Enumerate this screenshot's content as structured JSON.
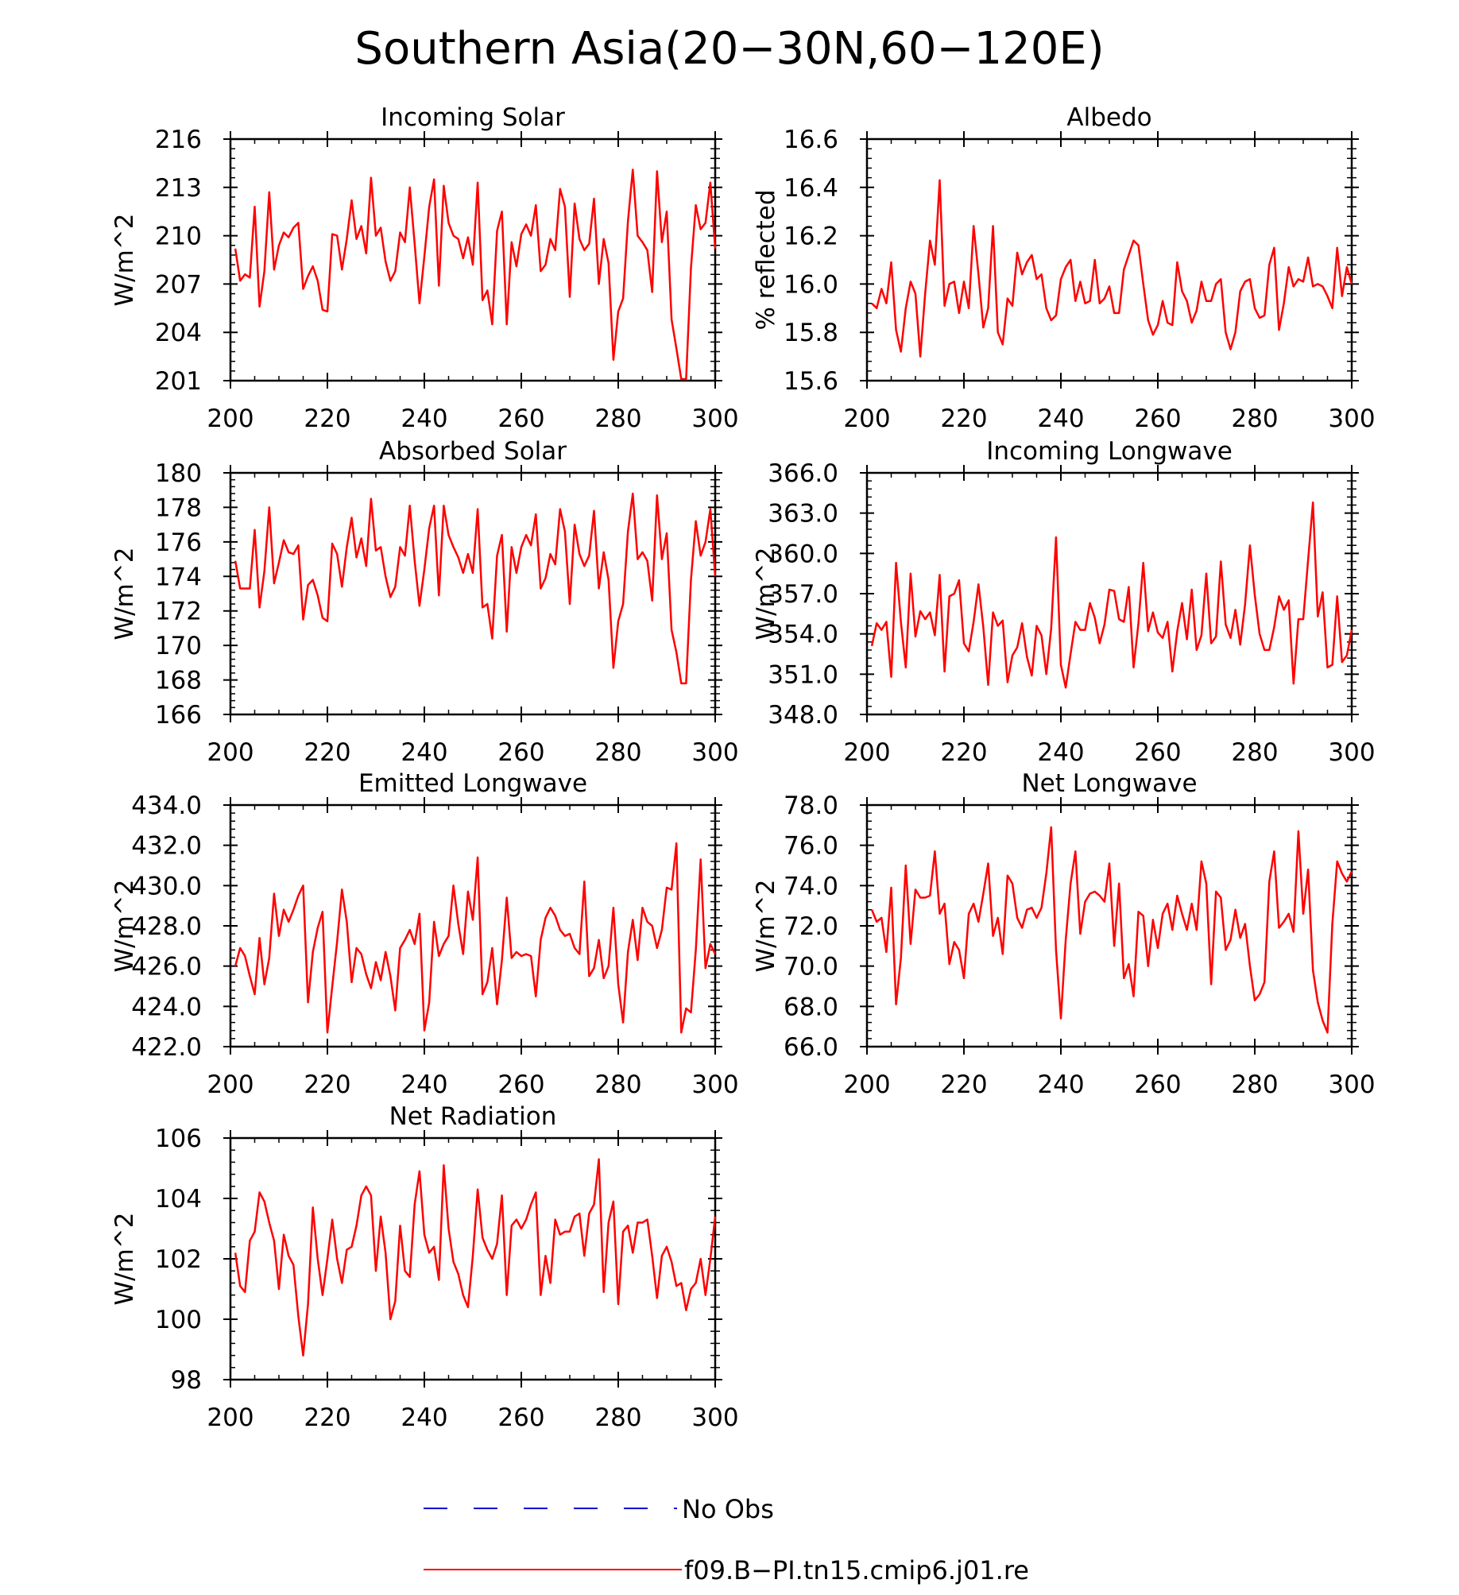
{
  "title": "Southern Asia(20−30N,60−120E)",
  "colors": {
    "model": "#ff0000",
    "obs": "#0000cc",
    "frame": "#000000"
  },
  "legend": {
    "obs_label": "No Obs",
    "model_label": "f09.B−PI.tn15.cmip6.j01.re"
  },
  "chart_data": [
    {
      "type": "line",
      "title": "Incoming Solar",
      "ylabel": "W/m^2",
      "xlim": [
        200,
        300
      ],
      "ylim": [
        201,
        216
      ],
      "xticks": [
        200,
        220,
        240,
        260,
        280,
        300
      ],
      "xtick_labels": [
        "200",
        "220",
        "240",
        "260",
        "280",
        "300"
      ],
      "yticks": [
        201,
        204,
        207,
        210,
        213,
        216
      ],
      "ytick_labels": [
        "201",
        "204",
        "207",
        "210",
        "213",
        "216"
      ],
      "x_start": 201,
      "series": [
        {
          "name": "f09.B−PI.tn15.cmip6.j01.re",
          "values": [
            209.2,
            207.2,
            207.6,
            207.4,
            211.8,
            205.6,
            207.8,
            212.7,
            207.9,
            209.4,
            210.2,
            209.9,
            210.5,
            210.8,
            206.7,
            207.5,
            208.1,
            207.2,
            205.4,
            205.3,
            210.1,
            210.0,
            207.9,
            209.8,
            212.2,
            209.8,
            210.6,
            208.9,
            213.6,
            210.0,
            210.5,
            208.4,
            207.2,
            207.8,
            210.2,
            209.6,
            213.0,
            209.5,
            205.8,
            208.7,
            211.8,
            213.5,
            206.9,
            213.1,
            210.8,
            210.0,
            209.8,
            208.6,
            209.9,
            208.2,
            213.3,
            206.0,
            206.6,
            204.5,
            210.3,
            211.5,
            204.5,
            209.6,
            208.1,
            210.1,
            210.7,
            210.0,
            211.9,
            207.8,
            208.2,
            209.8,
            209.1,
            212.9,
            211.8,
            206.2,
            212.0,
            209.8,
            209.1,
            209.5,
            212.3,
            207.0,
            209.8,
            208.3,
            202.3,
            205.3,
            206.1,
            210.9,
            214.1,
            210.0,
            209.6,
            209.1,
            206.5,
            214.0,
            209.6,
            211.5,
            204.8,
            203.0,
            201.1,
            201.1,
            208.0,
            211.9,
            210.4,
            210.8,
            213.3,
            209.2
          ]
        }
      ]
    },
    {
      "type": "line",
      "title": "Albedo",
      "ylabel": "% reflected",
      "xlim": [
        200,
        300
      ],
      "ylim": [
        15.6,
        16.6
      ],
      "xticks": [
        200,
        220,
        240,
        260,
        280,
        300
      ],
      "xtick_labels": [
        "200",
        "220",
        "240",
        "260",
        "280",
        "300"
      ],
      "yticks": [
        15.6,
        15.8,
        16.0,
        16.2,
        16.4,
        16.6
      ],
      "ytick_labels": [
        "15.6",
        "15.8",
        "16.0",
        "16.2",
        "16.4",
        "16.6"
      ],
      "x_start": 201,
      "series": [
        {
          "name": "f09.B−PI.tn15.cmip6.j01.re",
          "values": [
            15.92,
            15.9,
            15.98,
            15.92,
            16.09,
            15.81,
            15.72,
            15.9,
            16.01,
            15.96,
            15.7,
            15.96,
            16.18,
            16.08,
            16.43,
            15.91,
            16.0,
            16.01,
            15.88,
            16.01,
            15.9,
            16.24,
            16.04,
            15.82,
            15.9,
            16.24,
            15.8,
            15.75,
            15.94,
            15.91,
            16.13,
            16.04,
            16.09,
            16.12,
            16.02,
            16.04,
            15.9,
            15.85,
            15.87,
            16.02,
            16.07,
            16.1,
            15.93,
            16.01,
            15.92,
            15.93,
            16.1,
            15.92,
            15.94,
            15.99,
            15.88,
            15.88,
            16.06,
            16.12,
            16.18,
            16.16,
            16.0,
            15.85,
            15.79,
            15.83,
            15.93,
            15.84,
            15.83,
            16.09,
            15.97,
            15.93,
            15.84,
            15.89,
            16.01,
            15.93,
            15.93,
            16.0,
            16.02,
            15.8,
            15.73,
            15.8,
            15.97,
            16.01,
            16.02,
            15.9,
            15.86,
            15.87,
            16.08,
            16.15,
            15.81,
            15.92,
            16.07,
            15.99,
            16.02,
            16.01,
            16.11,
            15.99,
            16.0,
            15.99,
            15.95,
            15.9,
            16.15,
            15.95,
            16.07,
            16.0
          ]
        }
      ]
    },
    {
      "type": "line",
      "title": "Absorbed Solar",
      "ylabel": "W/m^2",
      "xlim": [
        200,
        300
      ],
      "ylim": [
        166,
        180
      ],
      "xticks": [
        200,
        220,
        240,
        260,
        280,
        300
      ],
      "xtick_labels": [
        "200",
        "220",
        "240",
        "260",
        "280",
        "300"
      ],
      "yticks": [
        166,
        168,
        170,
        172,
        174,
        176,
        178,
        180
      ],
      "ytick_labels": [
        "166",
        "168",
        "170",
        "172",
        "174",
        "176",
        "178",
        "180"
      ],
      "x_start": 201,
      "series": [
        {
          "name": "f09.B−PI.tn15.cmip6.j01.re",
          "values": [
            174.9,
            173.3,
            173.3,
            173.3,
            176.7,
            172.2,
            174.3,
            178.0,
            173.6,
            174.8,
            176.1,
            175.4,
            175.3,
            175.8,
            171.5,
            173.5,
            173.8,
            172.9,
            171.6,
            171.4,
            175.9,
            175.3,
            173.4,
            175.7,
            177.4,
            175.1,
            176.2,
            174.6,
            178.5,
            175.5,
            175.7,
            174.0,
            172.8,
            173.4,
            175.7,
            175.2,
            178.1,
            174.9,
            172.3,
            174.4,
            176.8,
            178.1,
            172.9,
            178.1,
            176.4,
            175.7,
            175.1,
            174.2,
            175.3,
            174.2,
            177.9,
            172.2,
            172.4,
            170.4,
            175.2,
            176.4,
            170.8,
            175.7,
            174.2,
            175.7,
            176.4,
            175.8,
            177.6,
            173.3,
            173.9,
            175.3,
            174.7,
            177.9,
            176.6,
            172.4,
            177.0,
            175.3,
            174.6,
            175.2,
            177.8,
            173.3,
            175.4,
            173.8,
            168.7,
            171.4,
            172.4,
            176.6,
            178.8,
            175.0,
            175.4,
            174.9,
            172.6,
            178.7,
            175.0,
            176.5,
            170.9,
            169.6,
            167.8,
            167.8,
            173.8,
            177.2,
            175.2,
            176.0,
            177.9,
            174.0
          ]
        }
      ]
    },
    {
      "type": "line",
      "title": "Incoming Longwave",
      "ylabel": "W/m^2",
      "xlim": [
        200,
        300
      ],
      "ylim": [
        348.0,
        366.0
      ],
      "xticks": [
        200,
        220,
        240,
        260,
        280,
        300
      ],
      "xtick_labels": [
        "200",
        "220",
        "240",
        "260",
        "280",
        "300"
      ],
      "yticks": [
        348.0,
        351.0,
        354.0,
        357.0,
        360.0,
        363.0,
        366.0
      ],
      "ytick_labels": [
        "348.0",
        "351.0",
        "354.0",
        "357.0",
        "360.0",
        "363.0",
        "366.0"
      ],
      "x_start": 201,
      "series": [
        {
          "name": "f09.B−PI.tn15.cmip6.j01.re",
          "values": [
            353.1,
            354.8,
            354.3,
            354.9,
            350.8,
            359.3,
            354.9,
            351.5,
            358.5,
            353.8,
            355.7,
            355.1,
            355.6,
            353.9,
            358.4,
            351.2,
            356.8,
            357.0,
            358.0,
            353.3,
            352.7,
            354.9,
            357.7,
            354.5,
            350.2,
            355.6,
            354.6,
            355.0,
            350.4,
            352.4,
            353.0,
            354.8,
            352.3,
            350.9,
            354.6,
            353.9,
            351.0,
            354.4,
            361.2,
            351.7,
            350.0,
            352.5,
            354.9,
            354.3,
            354.3,
            356.3,
            355.2,
            353.3,
            354.7,
            357.3,
            357.2,
            355.1,
            354.9,
            357.5,
            351.5,
            354.8,
            359.3,
            354.2,
            355.6,
            354.1,
            353.7,
            354.9,
            351.2,
            354.2,
            356.3,
            353.6,
            357.3,
            352.8,
            353.9,
            358.5,
            353.3,
            353.8,
            359.4,
            354.7,
            353.7,
            355.8,
            353.2,
            356.2,
            360.6,
            356.9,
            354.0,
            352.8,
            352.8,
            354.5,
            356.8,
            355.8,
            356.5,
            350.3,
            355.1,
            355.1,
            359.5,
            363.8,
            355.3,
            357.1,
            351.5,
            351.7,
            356.8,
            351.9,
            352.4,
            354.3
          ]
        }
      ]
    },
    {
      "type": "line",
      "title": "Emitted Longwave",
      "ylabel": "W/m^2",
      "xlim": [
        200,
        300
      ],
      "ylim": [
        422.0,
        434.0
      ],
      "xticks": [
        200,
        220,
        240,
        260,
        280,
        300
      ],
      "xtick_labels": [
        "200",
        "220",
        "240",
        "260",
        "280",
        "300"
      ],
      "yticks": [
        422.0,
        424.0,
        426.0,
        428.0,
        430.0,
        432.0,
        434.0
      ],
      "ytick_labels": [
        "422.0",
        "424.0",
        "426.0",
        "428.0",
        "430.0",
        "432.0",
        "434.0"
      ],
      "x_start": 201,
      "series": [
        {
          "name": "f09.B−PI.tn15.cmip6.j01.re",
          "values": [
            426.0,
            426.9,
            426.5,
            425.5,
            424.6,
            427.4,
            425.1,
            426.4,
            429.6,
            427.5,
            428.8,
            428.2,
            428.8,
            429.5,
            430.0,
            424.2,
            426.7,
            427.9,
            428.7,
            422.7,
            425.0,
            427.2,
            429.8,
            428.2,
            425.2,
            426.9,
            426.6,
            425.6,
            424.9,
            426.2,
            425.3,
            426.7,
            425.5,
            423.8,
            426.9,
            427.3,
            427.8,
            427.1,
            428.6,
            422.8,
            424.2,
            428.2,
            426.5,
            427.1,
            427.5,
            430.0,
            428.1,
            426.6,
            429.7,
            428.3,
            431.4,
            424.6,
            425.2,
            426.9,
            424.1,
            426.3,
            429.4,
            426.4,
            426.7,
            426.5,
            426.6,
            426.5,
            424.5,
            427.3,
            428.4,
            428.9,
            428.5,
            427.8,
            427.5,
            427.6,
            426.9,
            426.6,
            430.2,
            425.5,
            425.9,
            427.3,
            425.4,
            426.0,
            428.9,
            425.1,
            423.2,
            426.7,
            428.3,
            426.3,
            428.9,
            428.2,
            428.0,
            426.9,
            427.8,
            429.9,
            429.8,
            432.1,
            422.7,
            423.9,
            423.7,
            426.8,
            431.3,
            425.9,
            427.1,
            426.6
          ]
        }
      ]
    },
    {
      "type": "line",
      "title": "Net Longwave",
      "ylabel": "W/m^2",
      "xlim": [
        200,
        300
      ],
      "ylim": [
        66.0,
        78.0
      ],
      "xticks": [
        200,
        220,
        240,
        260,
        280,
        300
      ],
      "xtick_labels": [
        "200",
        "220",
        "240",
        "260",
        "280",
        "300"
      ],
      "yticks": [
        66.0,
        68.0,
        70.0,
        72.0,
        74.0,
        76.0,
        78.0
      ],
      "ytick_labels": [
        "66.0",
        "68.0",
        "70.0",
        "72.0",
        "74.0",
        "76.0",
        "78.0"
      ],
      "x_start": 201,
      "series": [
        {
          "name": "f09.B−PI.tn15.cmip6.j01.re",
          "values": [
            72.8,
            72.2,
            72.4,
            70.7,
            73.9,
            68.1,
            70.4,
            75.0,
            71.1,
            73.8,
            73.4,
            73.4,
            73.5,
            75.7,
            72.6,
            73.1,
            70.1,
            71.2,
            70.8,
            69.4,
            72.6,
            73.1,
            72.2,
            73.6,
            75.1,
            71.5,
            72.4,
            70.6,
            74.5,
            74.1,
            72.4,
            71.9,
            72.8,
            72.9,
            72.4,
            72.9,
            74.6,
            76.9,
            70.8,
            67.4,
            71.3,
            74.1,
            75.7,
            71.6,
            73.2,
            73.6,
            73.7,
            73.5,
            73.2,
            75.1,
            71.0,
            74.1,
            69.4,
            70.1,
            68.5,
            72.7,
            72.5,
            70.0,
            72.3,
            70.9,
            72.6,
            73.1,
            71.8,
            73.5,
            72.6,
            71.8,
            73.1,
            71.8,
            75.2,
            74.1,
            69.1,
            73.7,
            73.4,
            70.8,
            71.3,
            72.8,
            71.4,
            72.1,
            70.0,
            68.3,
            68.6,
            69.2,
            74.2,
            75.7,
            71.9,
            72.2,
            72.6,
            71.7,
            76.7,
            72.6,
            74.8,
            69.8,
            68.2,
            67.3,
            66.7,
            72.1,
            75.2,
            74.6,
            74.2,
            74.7
          ]
        }
      ]
    },
    {
      "type": "line",
      "title": "Net Radiation",
      "ylabel": "W/m^2",
      "xlim": [
        200,
        300
      ],
      "ylim": [
        98,
        106
      ],
      "xticks": [
        200,
        220,
        240,
        260,
        280,
        300
      ],
      "xtick_labels": [
        "200",
        "220",
        "240",
        "260",
        "280",
        "300"
      ],
      "yticks": [
        98,
        100,
        102,
        104,
        106
      ],
      "ytick_labels": [
        "98",
        "100",
        "102",
        "104",
        "106"
      ],
      "x_start": 201,
      "series": [
        {
          "name": "f09.B−PI.tn15.cmip6.j01.re",
          "values": [
            102.2,
            101.1,
            100.9,
            102.6,
            102.9,
            104.2,
            103.9,
            103.2,
            102.6,
            101.0,
            102.8,
            102.1,
            101.8,
            100.1,
            98.8,
            100.5,
            103.7,
            102.0,
            100.8,
            102.0,
            103.3,
            102.0,
            101.2,
            102.3,
            102.4,
            103.1,
            104.1,
            104.4,
            104.1,
            101.6,
            103.4,
            102.2,
            100.0,
            100.6,
            103.1,
            101.6,
            101.4,
            103.8,
            104.9,
            102.8,
            102.2,
            102.4,
            101.3,
            105.1,
            103.0,
            101.9,
            101.5,
            100.8,
            100.4,
            102.1,
            104.3,
            102.7,
            102.3,
            102.0,
            102.5,
            104.1,
            100.8,
            103.1,
            103.3,
            103.0,
            103.3,
            103.8,
            104.2,
            100.8,
            102.1,
            101.2,
            103.3,
            102.8,
            102.9,
            102.9,
            103.4,
            103.5,
            102.1,
            103.5,
            103.8,
            105.3,
            100.9,
            103.2,
            103.9,
            100.5,
            102.9,
            103.1,
            102.2,
            103.2,
            103.2,
            103.3,
            102.1,
            100.7,
            102.1,
            102.4,
            101.9,
            101.1,
            101.2,
            100.3,
            101.0,
            101.2,
            102.0,
            100.8,
            102.0,
            103.4
          ]
        }
      ]
    }
  ]
}
